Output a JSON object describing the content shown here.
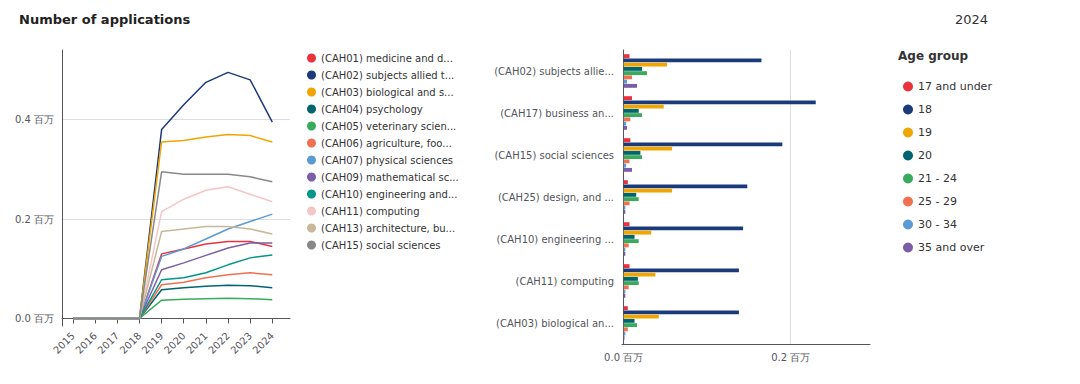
{
  "chart_data": [
    {
      "type": "line",
      "title": "Number of applications",
      "x": [
        2015,
        2016,
        2017,
        2018,
        2019,
        2020,
        2021,
        2022,
        2023,
        2024
      ],
      "series": [
        {
          "name": "(CAH01) medicine and d...",
          "color": "#e8333c",
          "values": [
            0,
            0,
            0,
            0,
            0.13,
            0.14,
            0.15,
            0.155,
            0.155,
            0.145
          ]
        },
        {
          "name": "(CAH02) subjects allied t...",
          "color": "#1a3a7a",
          "values": [
            0,
            0,
            0,
            0,
            0.38,
            0.43,
            0.475,
            0.495,
            0.48,
            0.395
          ]
        },
        {
          "name": "(CAH03) biological and s...",
          "color": "#f0a500",
          "values": [
            0,
            0,
            0,
            0,
            0.355,
            0.358,
            0.365,
            0.37,
            0.368,
            0.355
          ]
        },
        {
          "name": "(CAH04) psychology",
          "color": "#006570",
          "values": [
            0,
            0,
            0,
            0,
            0.058,
            0.062,
            0.065,
            0.067,
            0.066,
            0.062
          ]
        },
        {
          "name": "(CAH05) veterinary scien...",
          "color": "#3aaa5d",
          "values": [
            0,
            0,
            0,
            0,
            0.037,
            0.039,
            0.04,
            0.041,
            0.04,
            0.038
          ]
        },
        {
          "name": "(CAH06) agriculture, foo...",
          "color": "#f07050",
          "values": [
            0,
            0,
            0,
            0,
            0.068,
            0.073,
            0.082,
            0.088,
            0.092,
            0.088
          ]
        },
        {
          "name": "(CAH07) physical sciences",
          "color": "#5b9bd5",
          "values": [
            0,
            0,
            0,
            0,
            0.125,
            0.14,
            0.16,
            0.18,
            0.195,
            0.21
          ]
        },
        {
          "name": "(CAH09) mathematical sc...",
          "color": "#7b5ea7",
          "values": [
            0,
            0,
            0,
            0,
            0.098,
            0.112,
            0.127,
            0.142,
            0.152,
            0.152
          ]
        },
        {
          "name": "(CAH10) engineering and...",
          "color": "#009688",
          "values": [
            0,
            0,
            0,
            0,
            0.078,
            0.082,
            0.092,
            0.108,
            0.122,
            0.128
          ]
        },
        {
          "name": "(CAH11) computing",
          "color": "#f5c6c6",
          "values": [
            0,
            0,
            0,
            0,
            0.215,
            0.24,
            0.258,
            0.265,
            0.25,
            0.235
          ]
        },
        {
          "name": "(CAH13) architecture, bu...",
          "color": "#c8b89a",
          "values": [
            0,
            0,
            0,
            0,
            0.175,
            0.18,
            0.185,
            0.185,
            0.18,
            0.17
          ]
        },
        {
          "name": "(CAH15) social sciences",
          "color": "#888888",
          "values": [
            0,
            0,
            0,
            0,
            0.295,
            0.29,
            0.29,
            0.29,
            0.285,
            0.275
          ]
        }
      ],
      "xlim": [
        2014.5,
        2024.8
      ],
      "xticks": [
        2015,
        2016,
        2017,
        2018,
        2019,
        2020,
        2021,
        2022,
        2023,
        2024
      ],
      "ylim": [
        -0.015,
        0.54
      ],
      "yticks": [
        {
          "value": 0.0,
          "label": "0.0 百万"
        },
        {
          "value": 0.2,
          "label": "0.2 百万"
        },
        {
          "value": 0.4,
          "label": "0.4 百万"
        }
      ],
      "grid": true
    },
    {
      "type": "bar",
      "orientation": "horizontal",
      "title": "2024",
      "annotations": [
        "Age group"
      ],
      "categories": [
        "(CAH02) subjects allie...",
        "(CAH17) business an...",
        "(CAH15) social sciences",
        "(CAH25) design, and ...",
        "(CAH10) engineering ...",
        "(CAH11) computing",
        "(CAH03) biological an..."
      ],
      "series": [
        {
          "name": "17 and under",
          "color": "#e8333c",
          "values": [
            0.007,
            0.01,
            0.008,
            0.005,
            0.007,
            0.007,
            0.005
          ]
        },
        {
          "name": "18",
          "color": "#1a3a7a",
          "values": [
            0.165,
            0.23,
            0.19,
            0.148,
            0.143,
            0.138,
            0.138
          ]
        },
        {
          "name": "19",
          "color": "#f0a500",
          "values": [
            0.052,
            0.048,
            0.058,
            0.058,
            0.033,
            0.038,
            0.042
          ]
        },
        {
          "name": "20",
          "color": "#006570",
          "values": [
            0.022,
            0.018,
            0.02,
            0.015,
            0.013,
            0.017,
            0.013
          ]
        },
        {
          "name": "21 - 24",
          "color": "#3aaa5d",
          "values": [
            0.028,
            0.022,
            0.022,
            0.018,
            0.018,
            0.018,
            0.016
          ]
        },
        {
          "name": "25 - 29",
          "color": "#f07050",
          "values": [
            0.01,
            0.008,
            0.007,
            0.007,
            0.006,
            0.006,
            0.005
          ]
        },
        {
          "name": "30 - 34",
          "color": "#5b9bd5",
          "values": [
            0.004,
            0.003,
            0.003,
            0.002,
            0.002,
            0.002,
            0.002
          ]
        },
        {
          "name": "35 and over",
          "color": "#7b5ea7",
          "values": [
            0.016,
            0.004,
            0.01,
            0.002,
            0.002,
            0.002,
            0.001
          ]
        }
      ],
      "xlim": [
        -0.002,
        0.295
      ],
      "xticks": [
        {
          "value": 0.0,
          "label": "0.0 百万"
        },
        {
          "value": 0.2,
          "label": "0.2 百万"
        }
      ],
      "grid": true
    }
  ]
}
